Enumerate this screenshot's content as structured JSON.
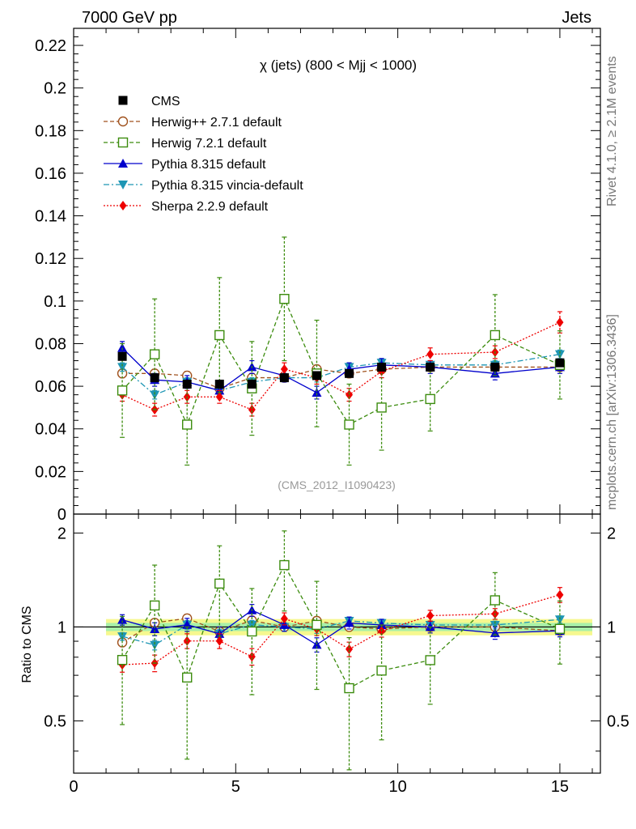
{
  "header": {
    "left": "7000 GeV pp",
    "right": "Jets"
  },
  "side_labels": {
    "rivet": "Rivet 4.1.0, ≥ 2.1M events",
    "site": "mcplots.cern.ch [arXiv:1306.3436]"
  },
  "chart_data": {
    "type": "line",
    "title": "χ (jets) (800 < Mjj < 1000)",
    "analysis_tag": "(CMS_2012_I1090423)",
    "xlim": [
      0,
      16.25
    ],
    "xticks": [
      0,
      5,
      10,
      15
    ],
    "xtick_labels": [
      "0",
      "5",
      "10",
      "15"
    ],
    "main": {
      "ylim": [
        0,
        0.228
      ],
      "yticks": [
        0,
        0.02,
        0.04,
        0.06,
        0.08,
        0.1,
        0.12,
        0.14,
        0.16,
        0.18,
        0.2,
        0.22
      ],
      "ytick_labels": [
        "0",
        "0.02",
        "0.04",
        "0.06",
        "0.08",
        "0.1",
        "0.12",
        "0.14",
        "0.16",
        "0.18",
        "0.2",
        "0.22"
      ]
    },
    "ratio": {
      "ylabel": "Ratio to CMS",
      "ylim": [
        0.34,
        2.3
      ],
      "yticks": [
        0.5,
        1,
        2
      ],
      "ytick_labels": [
        "0.5",
        "1",
        "2"
      ],
      "band_inner": 0.03,
      "band_outer": 0.06
    },
    "x": [
      1.5,
      2.5,
      3.5,
      4.5,
      5.5,
      6.5,
      7.5,
      8.5,
      9.5,
      11,
      13,
      15
    ],
    "series": [
      {
        "name": "CMS",
        "key": "cms",
        "color": "#000000",
        "marker": "square-filled",
        "line": "none",
        "values": [
          0.074,
          0.064,
          0.061,
          0.061,
          0.061,
          0.064,
          0.065,
          0.066,
          0.069,
          0.069,
          0.069,
          0.071
        ],
        "errors": [
          0.0015,
          0.0015,
          0.0015,
          0.0015,
          0.0015,
          0.0015,
          0.0015,
          0.0015,
          0.0015,
          0.0015,
          0.0015,
          0.0015
        ]
      },
      {
        "name": "Herwig++ 2.7.1 default",
        "key": "herwigpp",
        "color": "#a0521e",
        "marker": "circle-open",
        "line": "dashed",
        "values": [
          0.066,
          0.066,
          0.065,
          0.059,
          0.064,
          0.064,
          0.068,
          0.066,
          0.068,
          0.069,
          0.069,
          0.069
        ],
        "errors": [
          0.002,
          0.002,
          0.002,
          0.002,
          0.002,
          0.002,
          0.002,
          0.002,
          0.002,
          0.002,
          0.002,
          0.002
        ]
      },
      {
        "name": "Herwig 7.2.1 default",
        "key": "herwig7",
        "color": "#3c8c0e",
        "marker": "square-open",
        "line": "dashed",
        "values": [
          0.058,
          0.075,
          0.042,
          0.084,
          0.059,
          0.101,
          0.066,
          0.042,
          0.05,
          0.054,
          0.084,
          0.07
        ],
        "errors": [
          0.022,
          0.026,
          0.019,
          0.027,
          0.022,
          0.029,
          0.025,
          0.019,
          0.02,
          0.015,
          0.019,
          0.016
        ]
      },
      {
        "name": "Pythia 8.315 default",
        "key": "pythia",
        "color": "#0000cc",
        "marker": "triangle-up",
        "line": "solid",
        "values": [
          0.078,
          0.063,
          0.062,
          0.058,
          0.069,
          0.065,
          0.057,
          0.068,
          0.07,
          0.069,
          0.066,
          0.069
        ],
        "errors": [
          0.003,
          0.003,
          0.003,
          0.003,
          0.003,
          0.003,
          0.003,
          0.003,
          0.003,
          0.003,
          0.003,
          0.003
        ]
      },
      {
        "name": "Pythia 8.315 vincia-default",
        "key": "vincia",
        "color": "#1e96b4",
        "marker": "triangle-down",
        "line": "dashdot",
        "values": [
          0.069,
          0.056,
          0.062,
          0.058,
          0.062,
          0.064,
          0.064,
          0.069,
          0.071,
          0.07,
          0.07,
          0.075
        ],
        "errors": [
          0.002,
          0.002,
          0.002,
          0.002,
          0.002,
          0.002,
          0.002,
          0.002,
          0.002,
          0.002,
          0.002,
          0.002
        ]
      },
      {
        "name": "Sherpa 2.2.9 default",
        "key": "sherpa",
        "color": "#ee0000",
        "marker": "diamond",
        "line": "dotted",
        "values": [
          0.056,
          0.049,
          0.055,
          0.055,
          0.049,
          0.068,
          0.064,
          0.056,
          0.067,
          0.075,
          0.076,
          0.09
        ],
        "errors": [
          0.003,
          0.003,
          0.003,
          0.003,
          0.003,
          0.003,
          0.003,
          0.003,
          0.003,
          0.003,
          0.003,
          0.005
        ]
      }
    ]
  }
}
